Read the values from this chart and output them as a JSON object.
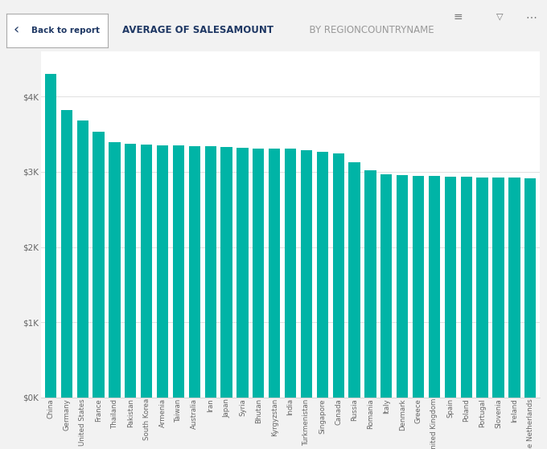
{
  "categories": [
    "China",
    "Germany",
    "United States",
    "France",
    "Thailand",
    "Pakistan",
    "South Korea",
    "Armenia",
    "Taiwan",
    "Australia",
    "Iran",
    "Japan",
    "Syria",
    "Bhutan",
    "Kyrgyzstan",
    "India",
    "Turkmenistan",
    "Singapore",
    "Canada",
    "Russia",
    "Romania",
    "Italy",
    "Denmark",
    "Greece",
    "United Kingdom",
    "Spain",
    "Poland",
    "Portugal",
    "Slovenia",
    "Ireland",
    "the Netherlands"
  ],
  "values": [
    4300,
    3820,
    3680,
    3530,
    3400,
    3370,
    3360,
    3355,
    3350,
    3345,
    3340,
    3335,
    3320,
    3315,
    3310,
    3305,
    3290,
    3270,
    3250,
    3130,
    3020,
    2970,
    2960,
    2950,
    2945,
    2940,
    2935,
    2930,
    2925,
    2920,
    2910
  ],
  "bar_color": "#00b4a6",
  "background_color": "#f2f2f2",
  "plot_bg_color": "#ffffff",
  "title_left": "AVERAGE OF SALESAMOUNT",
  "title_right": "  BY REGIONCOUNTRYNAME",
  "ylabel_ticks": [
    "$0K",
    "$1K",
    "$2K",
    "$3K",
    "$4K"
  ],
  "ytick_vals": [
    0,
    1000,
    2000,
    3000,
    4000
  ],
  "ylim": [
    0,
    4600
  ],
  "header_text_color": "#1f3864",
  "grid_color": "#e0e0e0",
  "tick_color": "#666666"
}
